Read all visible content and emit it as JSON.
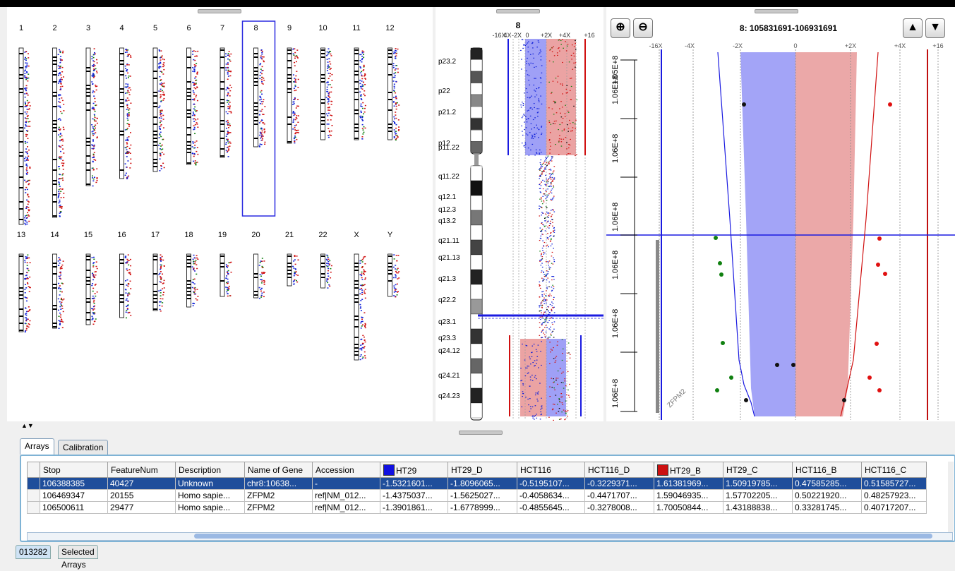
{
  "genome": {
    "row1": [
      "1",
      "2",
      "3",
      "4",
      "5",
      "6",
      "7",
      "8",
      "9",
      "10",
      "11",
      "12"
    ],
    "row2": [
      "13",
      "14",
      "15",
      "16",
      "17",
      "18",
      "19",
      "20",
      "21",
      "22",
      "X",
      "Y"
    ],
    "selected": "8"
  },
  "chromosome": {
    "title": "8",
    "scale_labels": [
      "-16X",
      "4X",
      "-2X",
      "0",
      "+2X",
      "+4X",
      "+16"
    ],
    "bands": [
      "p23.2",
      "p22",
      "p21.2",
      "p12",
      "p11.22",
      "q11.22",
      "q12.1",
      "q12.3",
      "q13.2",
      "q21.11",
      "q21.13",
      "q21.3",
      "q22.2",
      "q23.1",
      "q23.3",
      "q24.12",
      "q24.21",
      "q24.23"
    ]
  },
  "gene_view": {
    "title": "8: 105831691-106931691",
    "scale_labels": [
      "-16X",
      "-4X",
      "-2X",
      "0",
      "+2X",
      "+4X",
      "+16"
    ],
    "y_labels": [
      "1.05E+8",
      "1.06E+8",
      "1.06E+8",
      "1.06E+8",
      "1.06E+8",
      "1.06E+8",
      "1.06E+8"
    ],
    "gene_label": "ZFPM2",
    "zoom_in_icon": "zoom-in-icon",
    "zoom_out_icon": "zoom-out-icon",
    "up_icon": "arrow-up-icon",
    "down_icon": "arrow-down-icon"
  },
  "tabs": [
    "Arrays",
    "Calibration Arrays"
  ],
  "bottom_tabs": [
    "013282",
    "Selected Arrays"
  ],
  "table": {
    "columns": [
      "Stop",
      "FeatureNum",
      "Description",
      "Name of Gene",
      "Accession",
      "HT29",
      "HT29_D",
      "HCT116",
      "HCT116_D",
      "HT29_B",
      "HT29_C",
      "HCT116_B",
      "HCT116_C"
    ],
    "swatch_colors": {
      "HT29": "#1010e0",
      "HT29_B": "#cc1111"
    },
    "rows": [
      [
        "106388385",
        "40427",
        "Unknown",
        "chr8:10638...",
        "-",
        "-1.5321601...",
        "-1.8096065...",
        "-0.5195107...",
        "-0.3229371...",
        "1.61381969...",
        "1.50919785...",
        "0.47585285...",
        "0.51585727..."
      ],
      [
        "106469347",
        "20155",
        "Homo sapie...",
        "ZFPM2",
        "ref|NM_012...",
        "-1.4375037...",
        "-1.5625027...",
        "-0.4058634...",
        "-0.4471707...",
        "1.59046935...",
        "1.57702205...",
        "0.50221920...",
        "0.48257923..."
      ],
      [
        "106500611",
        "29477",
        "Homo sapie...",
        "ZFPM2",
        "ref|NM_012...",
        "-1.3901861...",
        "-1.6778999...",
        "-0.4855645...",
        "-0.3278008...",
        "1.70050844...",
        "1.43188838...",
        "0.33281745...",
        "0.40717207..."
      ]
    ]
  }
}
